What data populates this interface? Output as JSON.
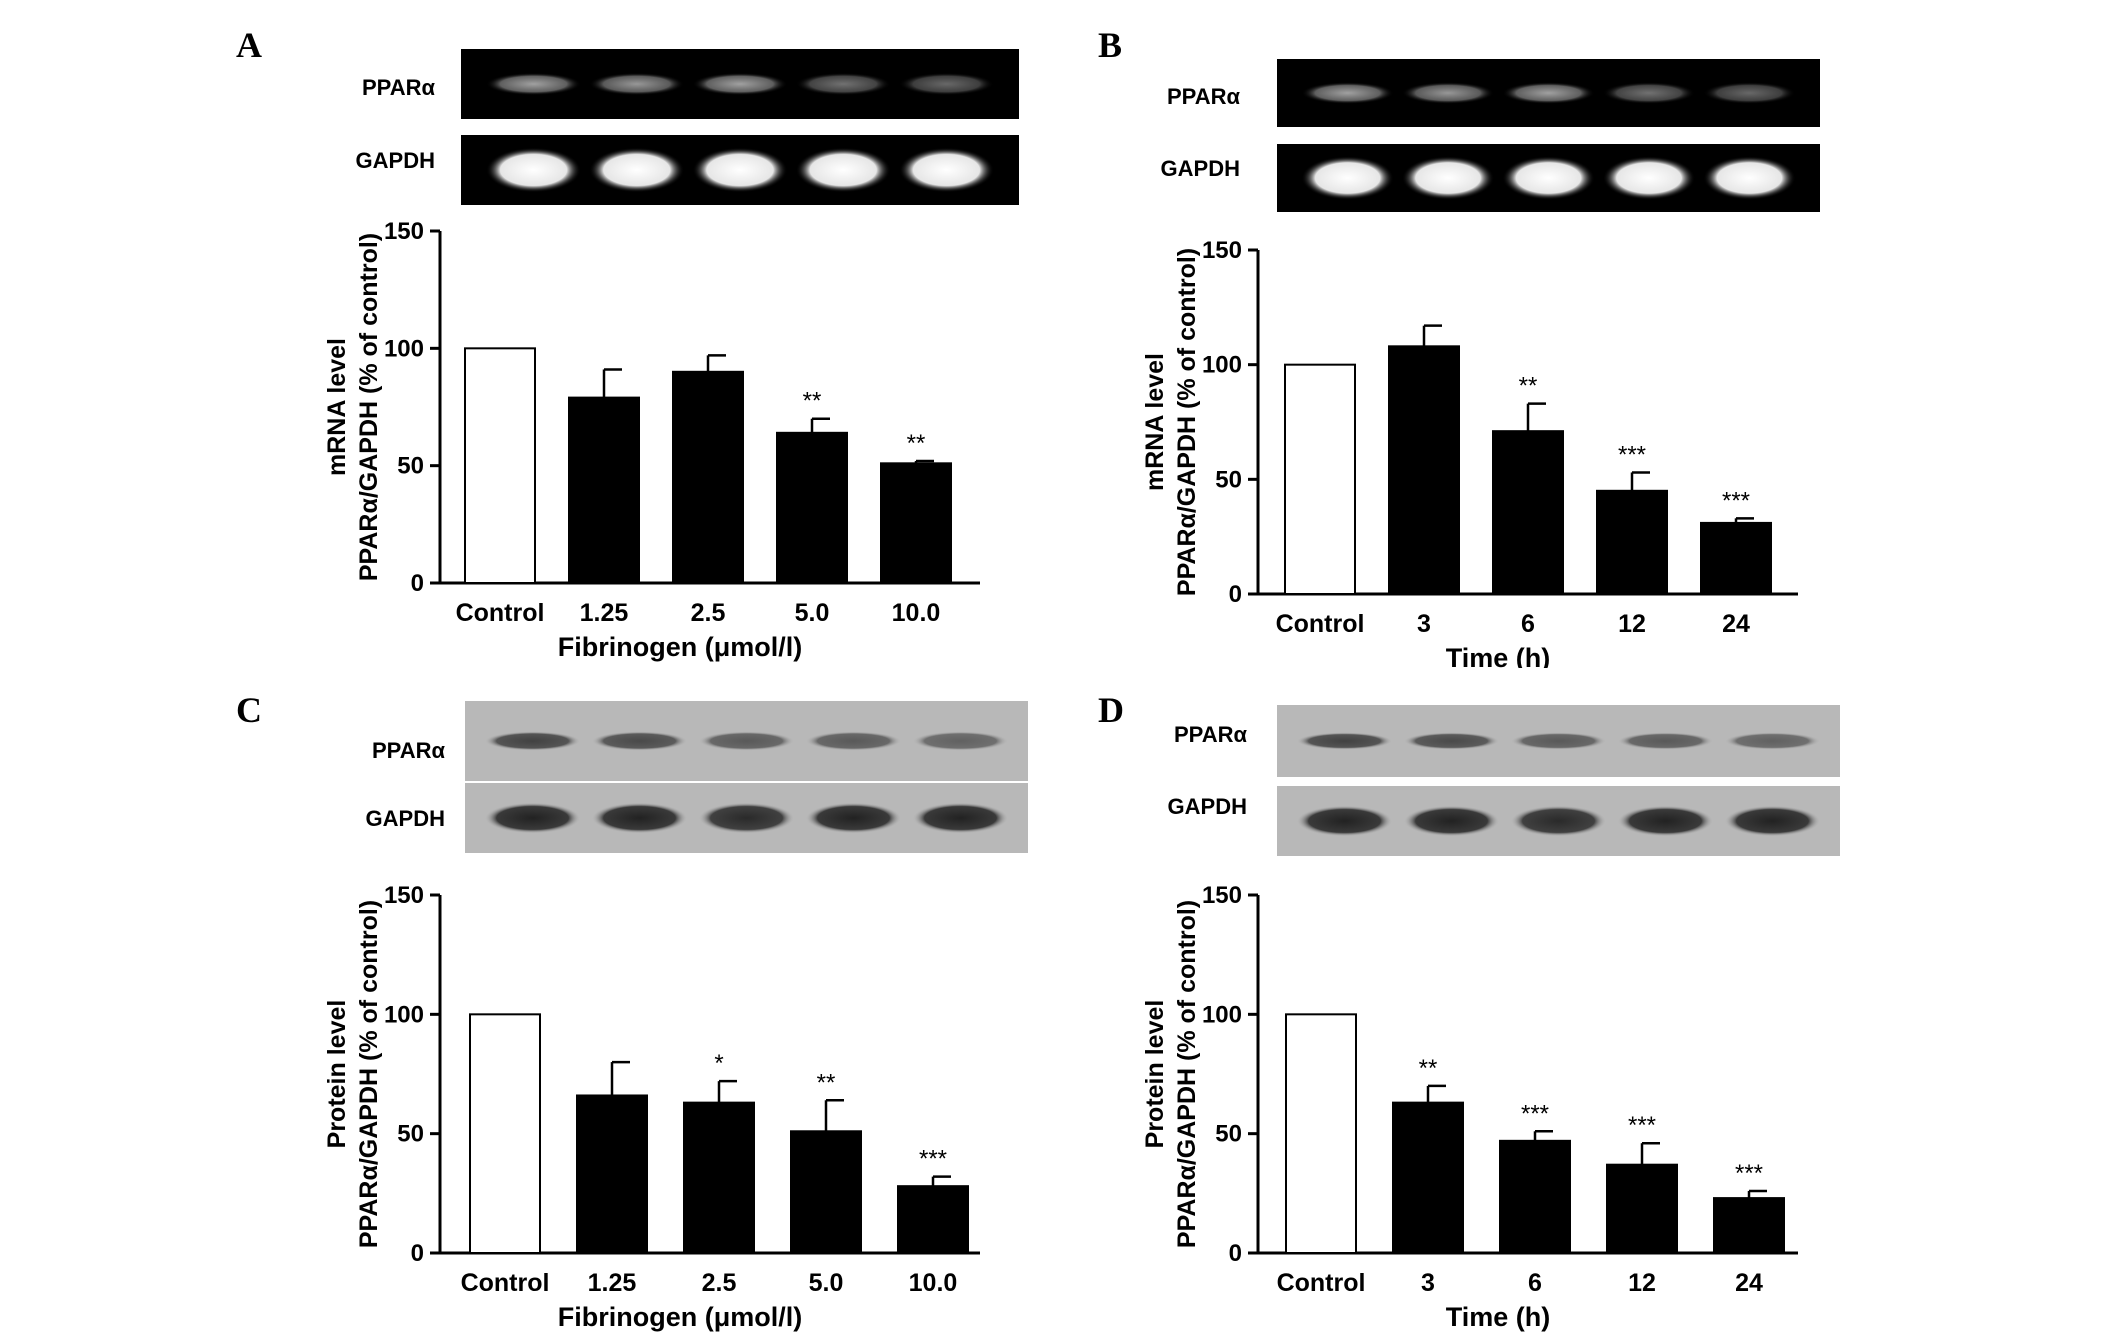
{
  "panels": [
    {
      "letter": "A",
      "blot_labels": [
        "PPARα",
        "GAPDH"
      ],
      "blot_kind": "gel",
      "chart_data": {
        "type": "bar",
        "categories": [
          "Control",
          "1.25",
          "2.5",
          "5.0",
          "10.0"
        ],
        "values": [
          100,
          79,
          90,
          64,
          51
        ],
        "errors": [
          0,
          12,
          7,
          6,
          1
        ],
        "significance": [
          "",
          "",
          "",
          "**",
          "**"
        ],
        "title": "",
        "xlabel": "Fibrinogen (μmol/l)",
        "ylabel_lines": [
          "mRNA level",
          "PPARα/GAPDH (% of control)"
        ],
        "ylim": [
          0,
          150
        ],
        "yticks": [
          0,
          50,
          100,
          150
        ],
        "bar_colors": [
          "#ffffff",
          "#000000",
          "#000000",
          "#000000",
          "#000000"
        ],
        "grid": false,
        "legend": "none"
      }
    },
    {
      "letter": "B",
      "blot_labels": [
        "PPARα",
        "GAPDH"
      ],
      "blot_kind": "gel",
      "chart_data": {
        "type": "bar",
        "categories": [
          "Control",
          "3",
          "6",
          "12",
          "24"
        ],
        "values": [
          100,
          108,
          71,
          45,
          31
        ],
        "errors": [
          0,
          9,
          12,
          8,
          2
        ],
        "significance": [
          "",
          "",
          "**",
          "***",
          "***"
        ],
        "title": "",
        "xlabel": "Time (h)",
        "ylabel_lines": [
          "mRNA level",
          "PPARα/GAPDH (% of control)"
        ],
        "ylim": [
          0,
          150
        ],
        "yticks": [
          0,
          50,
          100,
          150
        ],
        "bar_colors": [
          "#ffffff",
          "#000000",
          "#000000",
          "#000000",
          "#000000"
        ],
        "grid": false,
        "legend": "none"
      }
    },
    {
      "letter": "C",
      "blot_labels": [
        "PPARα",
        "GAPDH"
      ],
      "blot_kind": "western",
      "chart_data": {
        "type": "bar",
        "categories": [
          "Control",
          "1.25",
          "2.5",
          "5.0",
          "10.0"
        ],
        "values": [
          100,
          66,
          63,
          51,
          28
        ],
        "errors": [
          0,
          14,
          9,
          13,
          4
        ],
        "significance": [
          "",
          "",
          "*",
          "**",
          "***"
        ],
        "title": "",
        "xlabel": "Fibrinogen (μmol/l)",
        "ylabel_lines": [
          "Protein level",
          "PPARα/GAPDH (% of control)"
        ],
        "ylim": [
          0,
          150
        ],
        "yticks": [
          0,
          50,
          100,
          150
        ],
        "bar_colors": [
          "#ffffff",
          "#000000",
          "#000000",
          "#000000",
          "#000000"
        ],
        "grid": false,
        "legend": "none"
      }
    },
    {
      "letter": "D",
      "blot_labels": [
        "PPARα",
        "GAPDH"
      ],
      "blot_kind": "western",
      "chart_data": {
        "type": "bar",
        "categories": [
          "Control",
          "3",
          "6",
          "12",
          "24"
        ],
        "values": [
          100,
          63,
          47,
          37,
          23
        ],
        "errors": [
          0,
          7,
          4,
          9,
          3
        ],
        "significance": [
          "",
          "**",
          "***",
          "***",
          "***"
        ],
        "title": "",
        "xlabel": "Time (h)",
        "ylabel_lines": [
          "Protein level",
          "PPARα/GAPDH (% of control)"
        ],
        "ylim": [
          0,
          150
        ],
        "yticks": [
          0,
          50,
          100,
          150
        ],
        "bar_colors": [
          "#ffffff",
          "#000000",
          "#000000",
          "#000000",
          "#000000"
        ],
        "grid": false,
        "legend": "none"
      }
    }
  ],
  "chart_data": [
    {
      "type": "bar",
      "categories": [
        "Control",
        "1.25",
        "2.5",
        "5.0",
        "10.0"
      ],
      "values": [
        100,
        79,
        90,
        64,
        51
      ],
      "xlabel": "Fibrinogen (μmol/l)",
      "ylabel": "mRNA level PPARα/GAPDH (% of control)",
      "ylim": [
        0,
        150
      ]
    },
    {
      "type": "bar",
      "categories": [
        "Control",
        "3",
        "6",
        "12",
        "24"
      ],
      "values": [
        100,
        108,
        71,
        45,
        31
      ],
      "xlabel": "Time (h)",
      "ylabel": "mRNA level PPARα/GAPDH (% of control)",
      "ylim": [
        0,
        150
      ]
    },
    {
      "type": "bar",
      "categories": [
        "Control",
        "1.25",
        "2.5",
        "5.0",
        "10.0"
      ],
      "values": [
        100,
        66,
        63,
        51,
        28
      ],
      "xlabel": "Fibrinogen (μmol/l)",
      "ylabel": "Protein level PPARα/GAPDH (% of control)",
      "ylim": [
        0,
        150
      ]
    },
    {
      "type": "bar",
      "categories": [
        "Control",
        "3",
        "6",
        "12",
        "24"
      ],
      "values": [
        100,
        63,
        47,
        37,
        23
      ],
      "xlabel": "Time (h)",
      "ylabel": "Protein level PPARα/GAPDH (% of control)",
      "ylim": [
        0,
        150
      ]
    }
  ]
}
